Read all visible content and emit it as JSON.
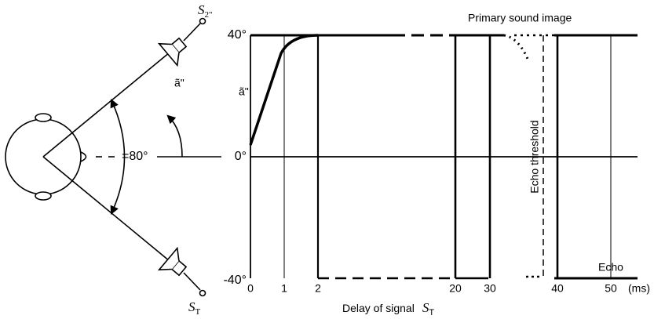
{
  "speakers": [
    {
      "symbol": "S",
      "subscript": "2\""
    },
    {
      "symbol": "S",
      "subscript": "T"
    }
  ],
  "angle_label": "ã\"",
  "spread_label": "=80°",
  "plot": {
    "y_label": "ã\"",
    "y_ticks": [
      "40°",
      "0°",
      "-40°"
    ],
    "x_ticks": [
      "0",
      "1",
      "2",
      "20",
      "30",
      "40",
      "50"
    ],
    "x_unit": "(ms)",
    "x_title": {
      "text": "Delay of signal",
      "symbol": "S",
      "subscript": "T"
    },
    "annotations": {
      "primary": "Primary sound image",
      "threshold": "Echo threshold",
      "echo": "Echo"
    }
  }
}
